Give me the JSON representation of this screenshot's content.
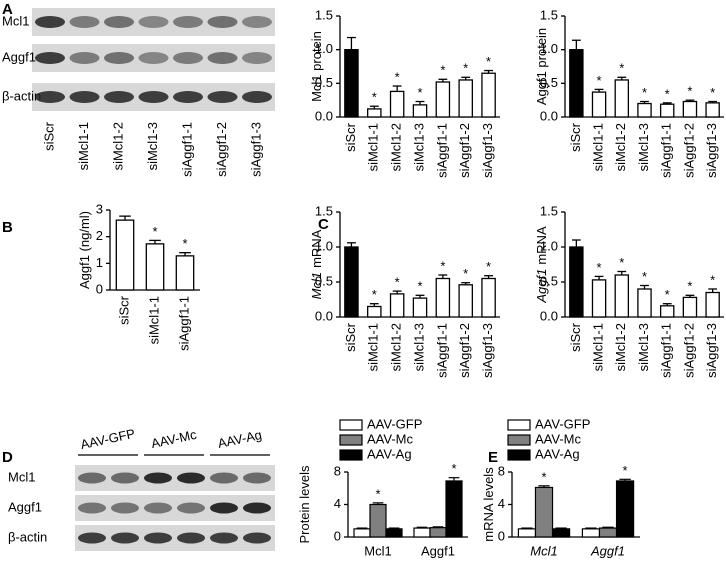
{
  "panel_labels": [
    "A",
    "B",
    "C",
    "D",
    "E"
  ],
  "blot_a": {
    "rows": [
      "Mcl1",
      "Aggf1",
      "β-actin"
    ],
    "lanes": [
      "siScr",
      "siMcl1-1",
      "siMcl1-2",
      "siMcl1-3",
      "siAggf1-1",
      "siAggf1-2",
      "siAggf1-3"
    ]
  },
  "blot_d": {
    "rows": [
      "Mcl1",
      "Aggf1",
      "β-actin"
    ],
    "groups": [
      "AAV-GFP",
      "AAV-Mc",
      "AAV-Ag"
    ]
  },
  "chart_data": [
    {
      "type": "bar",
      "y_label_parts": [
        {
          "text": "Mcl1 protein",
          "italic": false
        }
      ],
      "categories": [
        "siScr",
        "siMcl1-1",
        "siMcl1-2",
        "siMcl1-3",
        "siAggf1-1",
        "siAggf1-2",
        "siAggf1-3"
      ],
      "values": [
        1.0,
        0.12,
        0.38,
        0.18,
        0.52,
        0.55,
        0.65
      ],
      "errors": [
        0.18,
        0.04,
        0.08,
        0.05,
        0.04,
        0.04,
        0.04
      ],
      "significance": [
        null,
        "*",
        "*",
        "*",
        "*",
        "*",
        "*"
      ],
      "colors": [
        "#000000",
        "#ffffff",
        "#ffffff",
        "#ffffff",
        "#ffffff",
        "#ffffff",
        "#ffffff"
      ],
      "ylim": [
        0,
        1.5
      ],
      "yticks": [
        {
          "value": 0,
          "label": "0.0"
        },
        0.5,
        {
          "value": 1,
          "label": "1.0"
        },
        1.5
      ]
    },
    {
      "type": "bar",
      "y_label_parts": [
        {
          "text": "Aggf1 protein",
          "italic": false
        }
      ],
      "categories": [
        "siScr",
        "siMcl1-1",
        "siMcl1-2",
        "siMcl1-3",
        "siAggf1-1",
        "siAggf1-2",
        "siAggf1-3"
      ],
      "values": [
        1.0,
        0.37,
        0.55,
        0.2,
        0.19,
        0.23,
        0.21
      ],
      "errors": [
        0.14,
        0.04,
        0.04,
        0.03,
        0.02,
        0.02,
        0.02
      ],
      "significance": [
        null,
        "*",
        "*",
        "*",
        "*",
        "*",
        "*"
      ],
      "colors": [
        "#000000",
        "#ffffff",
        "#ffffff",
        "#ffffff",
        "#ffffff",
        "#ffffff",
        "#ffffff"
      ],
      "ylim": [
        0,
        1.5
      ],
      "yticks": [
        {
          "value": 0,
          "label": "0.0"
        },
        0.5,
        {
          "value": 1,
          "label": "1.0"
        },
        1.5
      ]
    },
    {
      "type": "bar",
      "y_label_parts": [
        {
          "text": "Aggf1 (ng/ml)",
          "italic": false
        }
      ],
      "categories": [
        "siScr",
        "siMcl1-1",
        "siAggf1-1"
      ],
      "values": [
        2.62,
        1.73,
        1.28
      ],
      "errors": [
        0.15,
        0.13,
        0.12
      ],
      "significance": [
        null,
        "*",
        "*"
      ],
      "colors": [
        "#ffffff",
        "#ffffff",
        "#ffffff"
      ],
      "ylim": [
        0,
        3
      ],
      "yticks": [
        0,
        1,
        2,
        3
      ]
    },
    {
      "type": "bar",
      "y_label_parts": [
        {
          "text": "Mcl1",
          "italic": true
        },
        {
          "text": "mRNA",
          "italic": false
        }
      ],
      "categories": [
        "siScr",
        "siMcl1-1",
        "siMcl1-2",
        "siMcl1-3",
        "siAggf1-1",
        "siAggf1-2",
        "siAggf1-3"
      ],
      "values": [
        1.0,
        0.15,
        0.33,
        0.27,
        0.55,
        0.46,
        0.55
      ],
      "errors": [
        0.06,
        0.04,
        0.04,
        0.04,
        0.05,
        0.03,
        0.04
      ],
      "significance": [
        null,
        "*",
        "*",
        "*",
        "*",
        "*",
        "*"
      ],
      "colors": [
        "#000000",
        "#ffffff",
        "#ffffff",
        "#ffffff",
        "#ffffff",
        "#ffffff",
        "#ffffff"
      ],
      "ylim": [
        0,
        1.5
      ],
      "yticks": [
        {
          "value": 0,
          "label": "0.0"
        },
        0.5,
        {
          "value": 1,
          "label": "1.0"
        },
        1.5
      ]
    },
    {
      "type": "bar",
      "y_label_parts": [
        {
          "text": "Aggf1",
          "italic": true
        },
        {
          "text": "mRNA",
          "italic": false
        }
      ],
      "categories": [
        "siScr",
        "siMcl1-1",
        "siMcl1-2",
        "siMcl1-3",
        "siAggf1-1",
        "siAggf1-2",
        "siAggf1-3"
      ],
      "values": [
        1.0,
        0.53,
        0.6,
        0.4,
        0.16,
        0.28,
        0.35
      ],
      "errors": [
        0.1,
        0.05,
        0.05,
        0.05,
        0.03,
        0.03,
        0.05
      ],
      "significance": [
        null,
        "*",
        "*",
        "*",
        "*",
        "*",
        "*"
      ],
      "colors": [
        "#000000",
        "#ffffff",
        "#ffffff",
        "#ffffff",
        "#ffffff",
        "#ffffff",
        "#ffffff"
      ],
      "ylim": [
        0,
        1.5
      ],
      "yticks": [
        {
          "value": 0,
          "label": "0.0"
        },
        0.5,
        {
          "value": 1,
          "label": "1.0"
        },
        1.5
      ]
    },
    {
      "type": "grouped_bar",
      "y_label_parts": [
        {
          "text": "Protein levels",
          "italic": false
        }
      ],
      "categories": [
        "Mcl1",
        "Aggf1"
      ],
      "italic_categories": false,
      "series": [
        {
          "name": "AAV-GFP",
          "color": "#ffffff",
          "values": [
            1.0,
            1.1
          ],
          "errors": [
            0.1,
            0.1
          ],
          "significance": [
            null,
            null
          ]
        },
        {
          "name": "AAV-Mc",
          "color": "#808080",
          "values": [
            4.0,
            1.15
          ],
          "errors": [
            0.2,
            0.1
          ],
          "significance": [
            "*",
            null
          ]
        },
        {
          "name": "AAV-Ag",
          "color": "#000000",
          "values": [
            1.0,
            6.9
          ],
          "errors": [
            0.1,
            0.4
          ],
          "significance": [
            null,
            "*"
          ]
        }
      ],
      "ylim": [
        0,
        8
      ],
      "yticks": [
        0,
        4,
        8
      ],
      "legend": "top-left"
    },
    {
      "type": "grouped_bar",
      "y_label_parts": [
        {
          "text": "mRNA levels",
          "italic": false
        }
      ],
      "categories": [
        "Mcl1",
        "Aggf1"
      ],
      "italic_categories": true,
      "series": [
        {
          "name": "AAV-GFP",
          "color": "#ffffff",
          "values": [
            1.0,
            1.0
          ],
          "errors": [
            0.1,
            0.1
          ],
          "significance": [
            null,
            null
          ]
        },
        {
          "name": "AAV-Mc",
          "color": "#808080",
          "values": [
            6.1,
            1.1
          ],
          "errors": [
            0.2,
            0.1
          ],
          "significance": [
            "*",
            null
          ]
        },
        {
          "name": "AAV-Ag",
          "color": "#000000",
          "values": [
            1.0,
            6.9
          ],
          "errors": [
            0.1,
            0.2
          ],
          "significance": [
            null,
            "*"
          ]
        }
      ],
      "ylim": [
        0,
        8
      ],
      "yticks": [
        0,
        4,
        8
      ],
      "legend": "top-left"
    }
  ]
}
